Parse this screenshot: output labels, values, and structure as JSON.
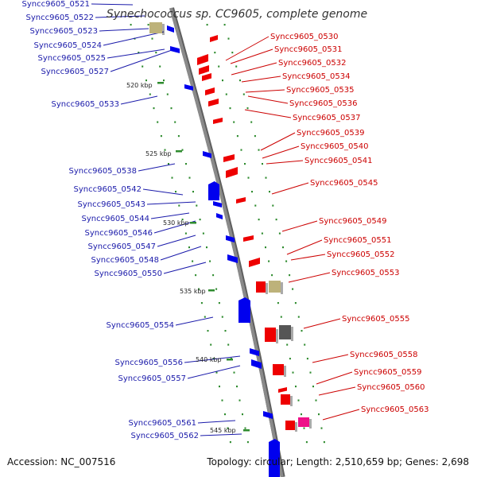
{
  "title": "Synechococcus sp. CC9605, complete genome",
  "footer": {
    "accession": "Accession: NC_007516",
    "topology": "Topology: circular; Length: 2,510,659 bp; Genes: 2,698"
  },
  "colors": {
    "backbone": "#8a8a8a",
    "tick": "#2e8b2e",
    "forward_gene": "#0000ee",
    "reverse_gene": "#ee0000",
    "hypothetical_gene": "#bdb27a",
    "other_gene": "#555555",
    "pink_gene": "#ee1188",
    "left_label": "#1a1aaa",
    "right_label": "#cc0000"
  },
  "scale_labels": [
    {
      "text": "520 kbp",
      "kbp": 520
    },
    {
      "text": "525 kbp",
      "kbp": 525
    },
    {
      "text": "530 kbp",
      "kbp": 530
    },
    {
      "text": "535 kbp",
      "kbp": 535
    },
    {
      "text": "540 kbp",
      "kbp": 540
    },
    {
      "text": "545 kbp",
      "kbp": 545
    }
  ],
  "left_genes": [
    {
      "label": "Syncc9605_0521"
    },
    {
      "label": "Syncc9605_0522"
    },
    {
      "label": "Syncc9605_0523"
    },
    {
      "label": "Syncc9605_0524"
    },
    {
      "label": "Syncc9605_0525"
    },
    {
      "label": "Syncc9605_0527"
    },
    {
      "label": "Syncc9605_0533"
    },
    {
      "label": "Syncc9605_0538"
    },
    {
      "label": "Syncc9605_0542"
    },
    {
      "label": "Syncc9605_0543"
    },
    {
      "label": "Syncc9605_0544"
    },
    {
      "label": "Syncc9605_0546"
    },
    {
      "label": "Syncc9605_0547"
    },
    {
      "label": "Syncc9605_0548"
    },
    {
      "label": "Syncc9605_0550"
    },
    {
      "label": "Syncc9605_0554"
    },
    {
      "label": "Syncc9605_0556"
    },
    {
      "label": "Syncc9605_0557"
    },
    {
      "label": "Syncc9605_0561"
    },
    {
      "label": "Syncc9605_0562"
    }
  ],
  "right_genes": [
    {
      "label": "Syncc9605_0530"
    },
    {
      "label": "Syncc9605_0531"
    },
    {
      "label": "Syncc9605_0532"
    },
    {
      "label": "Syncc9605_0534"
    },
    {
      "label": "Syncc9605_0535"
    },
    {
      "label": "Syncc9605_0536"
    },
    {
      "label": "Syncc9605_0537"
    },
    {
      "label": "Syncc9605_0539"
    },
    {
      "label": "Syncc9605_0540"
    },
    {
      "label": "Syncc9605_0541"
    },
    {
      "label": "Syncc9605_0545"
    },
    {
      "label": "Syncc9605_0549"
    },
    {
      "label": "Syncc9605_0551"
    },
    {
      "label": "Syncc9605_0552"
    },
    {
      "label": "Syncc9605_0553"
    },
    {
      "label": "Syncc9605_0555"
    },
    {
      "label": "Syncc9605_0558"
    },
    {
      "label": "Syncc9605_0559"
    },
    {
      "label": "Syncc9605_0560"
    },
    {
      "label": "Syncc9605_0563"
    }
  ]
}
